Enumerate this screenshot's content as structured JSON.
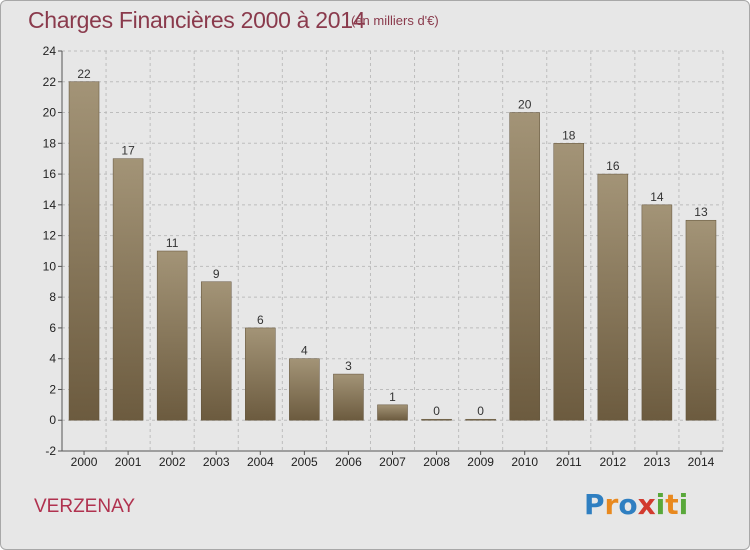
{
  "header": {
    "title": "Charges Financières 2000 à 2014",
    "unit": "(en milliers d'€)"
  },
  "footer": {
    "commune": "VERZENAY",
    "logo": [
      "P",
      "r",
      "o",
      "x",
      "i",
      "t",
      "i"
    ],
    "logo_colors": [
      "#2f7fc1",
      "#e8891f",
      "#2f7fc1",
      "#d23a2e",
      "#59a83a",
      "#e8891f",
      "#59a83a"
    ]
  },
  "colors": {
    "bar_top": "#a39477",
    "bar_bottom": "#6c5b3f",
    "plot_bg": "#e7e7e7",
    "grid": "#bdbdbd"
  },
  "chart_data": {
    "type": "bar",
    "categories": [
      "2000",
      "2001",
      "2002",
      "2003",
      "2004",
      "2005",
      "2006",
      "2007",
      "2008",
      "2009",
      "2010",
      "2011",
      "2012",
      "2013",
      "2014"
    ],
    "values": [
      22,
      17,
      11,
      9,
      6,
      4,
      3,
      1,
      0,
      0,
      20,
      18,
      16,
      14,
      13
    ],
    "ylim": [
      -2,
      24
    ],
    "yticks": [
      -2,
      0,
      2,
      4,
      6,
      8,
      10,
      12,
      14,
      16,
      18,
      20,
      22,
      24
    ],
    "grid": "horizontal dashed"
  }
}
